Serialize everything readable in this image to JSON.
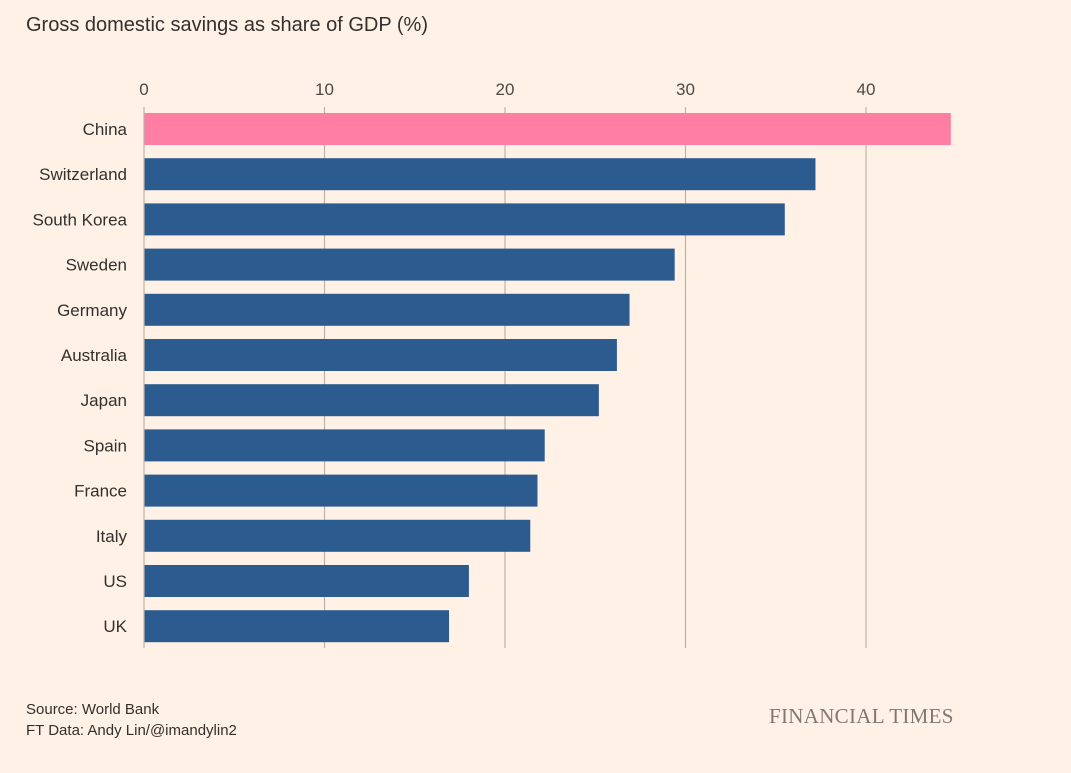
{
  "chart_data": {
    "type": "bar",
    "orientation": "horizontal",
    "title": "Gross domestic savings as share of GDP (%)",
    "categories": [
      "China",
      "Switzerland",
      "South Korea",
      "Sweden",
      "Germany",
      "Australia",
      "Japan",
      "Spain",
      "France",
      "Italy",
      "US",
      "UK"
    ],
    "values": [
      44.7,
      37.2,
      35.5,
      29.4,
      26.9,
      26.2,
      25.2,
      22.2,
      21.8,
      21.4,
      18.0,
      16.9
    ],
    "highlight": "China",
    "xlim": [
      0,
      45
    ],
    "xticks": [
      0,
      10,
      20,
      30,
      40
    ],
    "xlabel": "",
    "ylabel": "",
    "grid": true,
    "axis_position": "top"
  },
  "colors": {
    "background": "#fff1e5",
    "bar": "#2c5b8f",
    "highlight_bar": "#ff7ea3",
    "gridline": "#bdb3aa",
    "brand_text": "#807973"
  },
  "footer": {
    "source": "Source: World Bank",
    "credit": "FT Data: Andy Lin/@imandylin2"
  },
  "brand": "FINANCIAL TIMES"
}
